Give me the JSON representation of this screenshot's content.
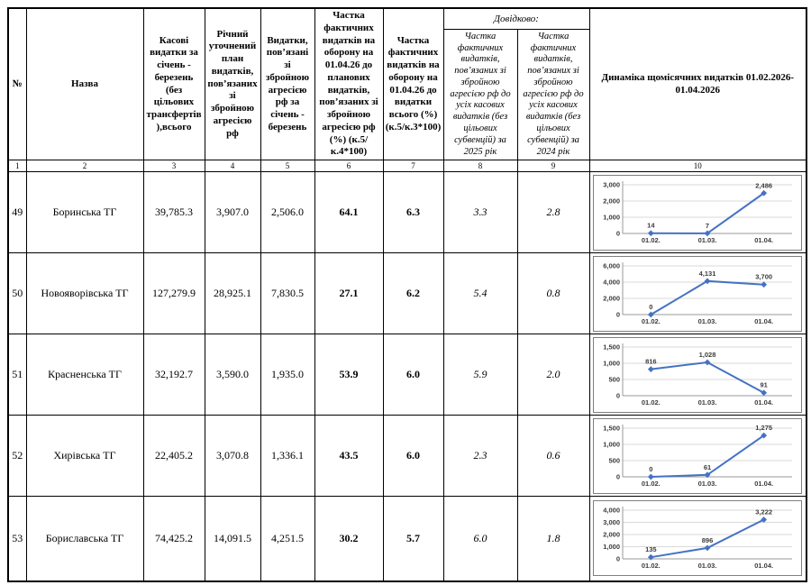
{
  "table": {
    "headers": {
      "col_no": "№",
      "col_name": "Назва",
      "col_cash": "Касові видатки за січень - березень (без цільових трансфертів),всього",
      "col_plan": "Річний уточнений план видатків, пов’язаних зі збройною агресією рф",
      "col_expenses": "Видатки, пов’язані зі збройною агресією рф за січень - березень",
      "col_share_plan": "Частка фактичних видатків на оборону на 01.04.26 до планових видатків, пов’язаних зі збройною агресією рф (%) (к.5/к.4*100)",
      "col_share_total": "Частка фактичних видатків на оборону на 01.04.26 до видатки всього (%) (к.5/к.3*100)",
      "dovidkovo": "Довідково:",
      "col_share_2025": "Частка фактичних видатків, пов’язаних зі збройною агресією рф до усіх касових видатків (без цільових субвенцій) за 2025 рік",
      "col_share_2024": "Частка фактичних видатків, пов’язаних зі збройною агресією рф до усіх касових видатків (без цільових субвенцій) за 2024 рік",
      "col_dynamics": "Динаміка щомісячних видатків 01.02.2026-01.04.2026"
    },
    "column_numbers": [
      "1",
      "2",
      "3",
      "4",
      "5",
      "6",
      "7",
      "8",
      "9",
      "10"
    ],
    "rows": [
      {
        "num": "49",
        "name": "Боринська ТГ",
        "cash": "39,785.3",
        "plan": "3,907.0",
        "expenses": "2,506.0",
        "share_plan": "64.1",
        "share_total": "6.3",
        "share_2025": "3.3",
        "share_2024": "2.8",
        "chart": {
          "type": "line",
          "ymax": 3000,
          "yticks": [
            {
              "v": 0,
              "label": "0"
            },
            {
              "v": 1000,
              "label": "1,000"
            },
            {
              "v": 2000,
              "label": "2,000"
            },
            {
              "v": 3000,
              "label": "3,000"
            }
          ],
          "x_labels": [
            "01.02.",
            "01.03.",
            "01.04."
          ],
          "points": [
            {
              "v": 14,
              "label": "14"
            },
            {
              "v": 7,
              "label": "7"
            },
            {
              "v": 2486,
              "label": "2,486"
            }
          ]
        }
      },
      {
        "num": "50",
        "name": "Новояворівська ТГ",
        "cash": "127,279.9",
        "plan": "28,925.1",
        "expenses": "7,830.5",
        "share_plan": "27.1",
        "share_total": "6.2",
        "share_2025": "5.4",
        "share_2024": "0.8",
        "chart": {
          "type": "line",
          "ymax": 6000,
          "yticks": [
            {
              "v": 0,
              "label": "0"
            },
            {
              "v": 2000,
              "label": "2,000"
            },
            {
              "v": 4000,
              "label": "4,000"
            },
            {
              "v": 6000,
              "label": "6,000"
            }
          ],
          "x_labels": [
            "01.02.",
            "01.03.",
            "01.04."
          ],
          "points": [
            {
              "v": 0,
              "label": "0"
            },
            {
              "v": 4131,
              "label": "4,131"
            },
            {
              "v": 3700,
              "label": "3,700"
            }
          ]
        }
      },
      {
        "num": "51",
        "name": "Красненська ТГ",
        "cash": "32,192.7",
        "plan": "3,590.0",
        "expenses": "1,935.0",
        "share_plan": "53.9",
        "share_total": "6.0",
        "share_2025": "5.9",
        "share_2024": "2.0",
        "chart": {
          "type": "line",
          "ymax": 1500,
          "yticks": [
            {
              "v": 0,
              "label": "0"
            },
            {
              "v": 500,
              "label": "500"
            },
            {
              "v": 1000,
              "label": "1,000"
            },
            {
              "v": 1500,
              "label": "1,500"
            }
          ],
          "x_labels": [
            "01.02.",
            "01.03.",
            "01.04."
          ],
          "points": [
            {
              "v": 816,
              "label": "816"
            },
            {
              "v": 1028,
              "label": "1,028"
            },
            {
              "v": 91,
              "label": "91"
            }
          ]
        }
      },
      {
        "num": "52",
        "name": "Хирівська ТГ",
        "cash": "22,405.2",
        "plan": "3,070.8",
        "expenses": "1,336.1",
        "share_plan": "43.5",
        "share_total": "6.0",
        "share_2025": "2.3",
        "share_2024": "0.6",
        "chart": {
          "type": "line",
          "ymax": 1500,
          "yticks": [
            {
              "v": 0,
              "label": "0"
            },
            {
              "v": 500,
              "label": "500"
            },
            {
              "v": 1000,
              "label": "1,000"
            },
            {
              "v": 1500,
              "label": "1,500"
            }
          ],
          "x_labels": [
            "01.02.",
            "01.03.",
            "01.04."
          ],
          "points": [
            {
              "v": 0,
              "label": "0"
            },
            {
              "v": 61,
              "label": "61"
            },
            {
              "v": 1275,
              "label": "1,275"
            }
          ]
        }
      },
      {
        "num": "53",
        "name": "Бориславська ТГ",
        "cash": "74,425.2",
        "plan": "14,091.5",
        "expenses": "4,251.5",
        "share_plan": "30.2",
        "share_total": "5.7",
        "share_2025": "6.0",
        "share_2024": "1.8",
        "chart": {
          "type": "line",
          "ymax": 4000,
          "yticks": [
            {
              "v": 0,
              "label": "0"
            },
            {
              "v": 1000,
              "label": "1,000"
            },
            {
              "v": 2000,
              "label": "2,000"
            },
            {
              "v": 3000,
              "label": "3,000"
            },
            {
              "v": 4000,
              "label": "4,000"
            }
          ],
          "x_labels": [
            "01.02.",
            "01.03.",
            "01.04."
          ],
          "points": [
            {
              "v": 135,
              "label": "135"
            },
            {
              "v": 896,
              "label": "896"
            },
            {
              "v": 3222,
              "label": "3,222"
            }
          ]
        }
      }
    ]
  },
  "chart_style": {
    "line_color": "#4472C4",
    "grid_color": "#D9D9D9",
    "axis_color": "#9A9A9A",
    "label_color": "#3B3B3B"
  }
}
